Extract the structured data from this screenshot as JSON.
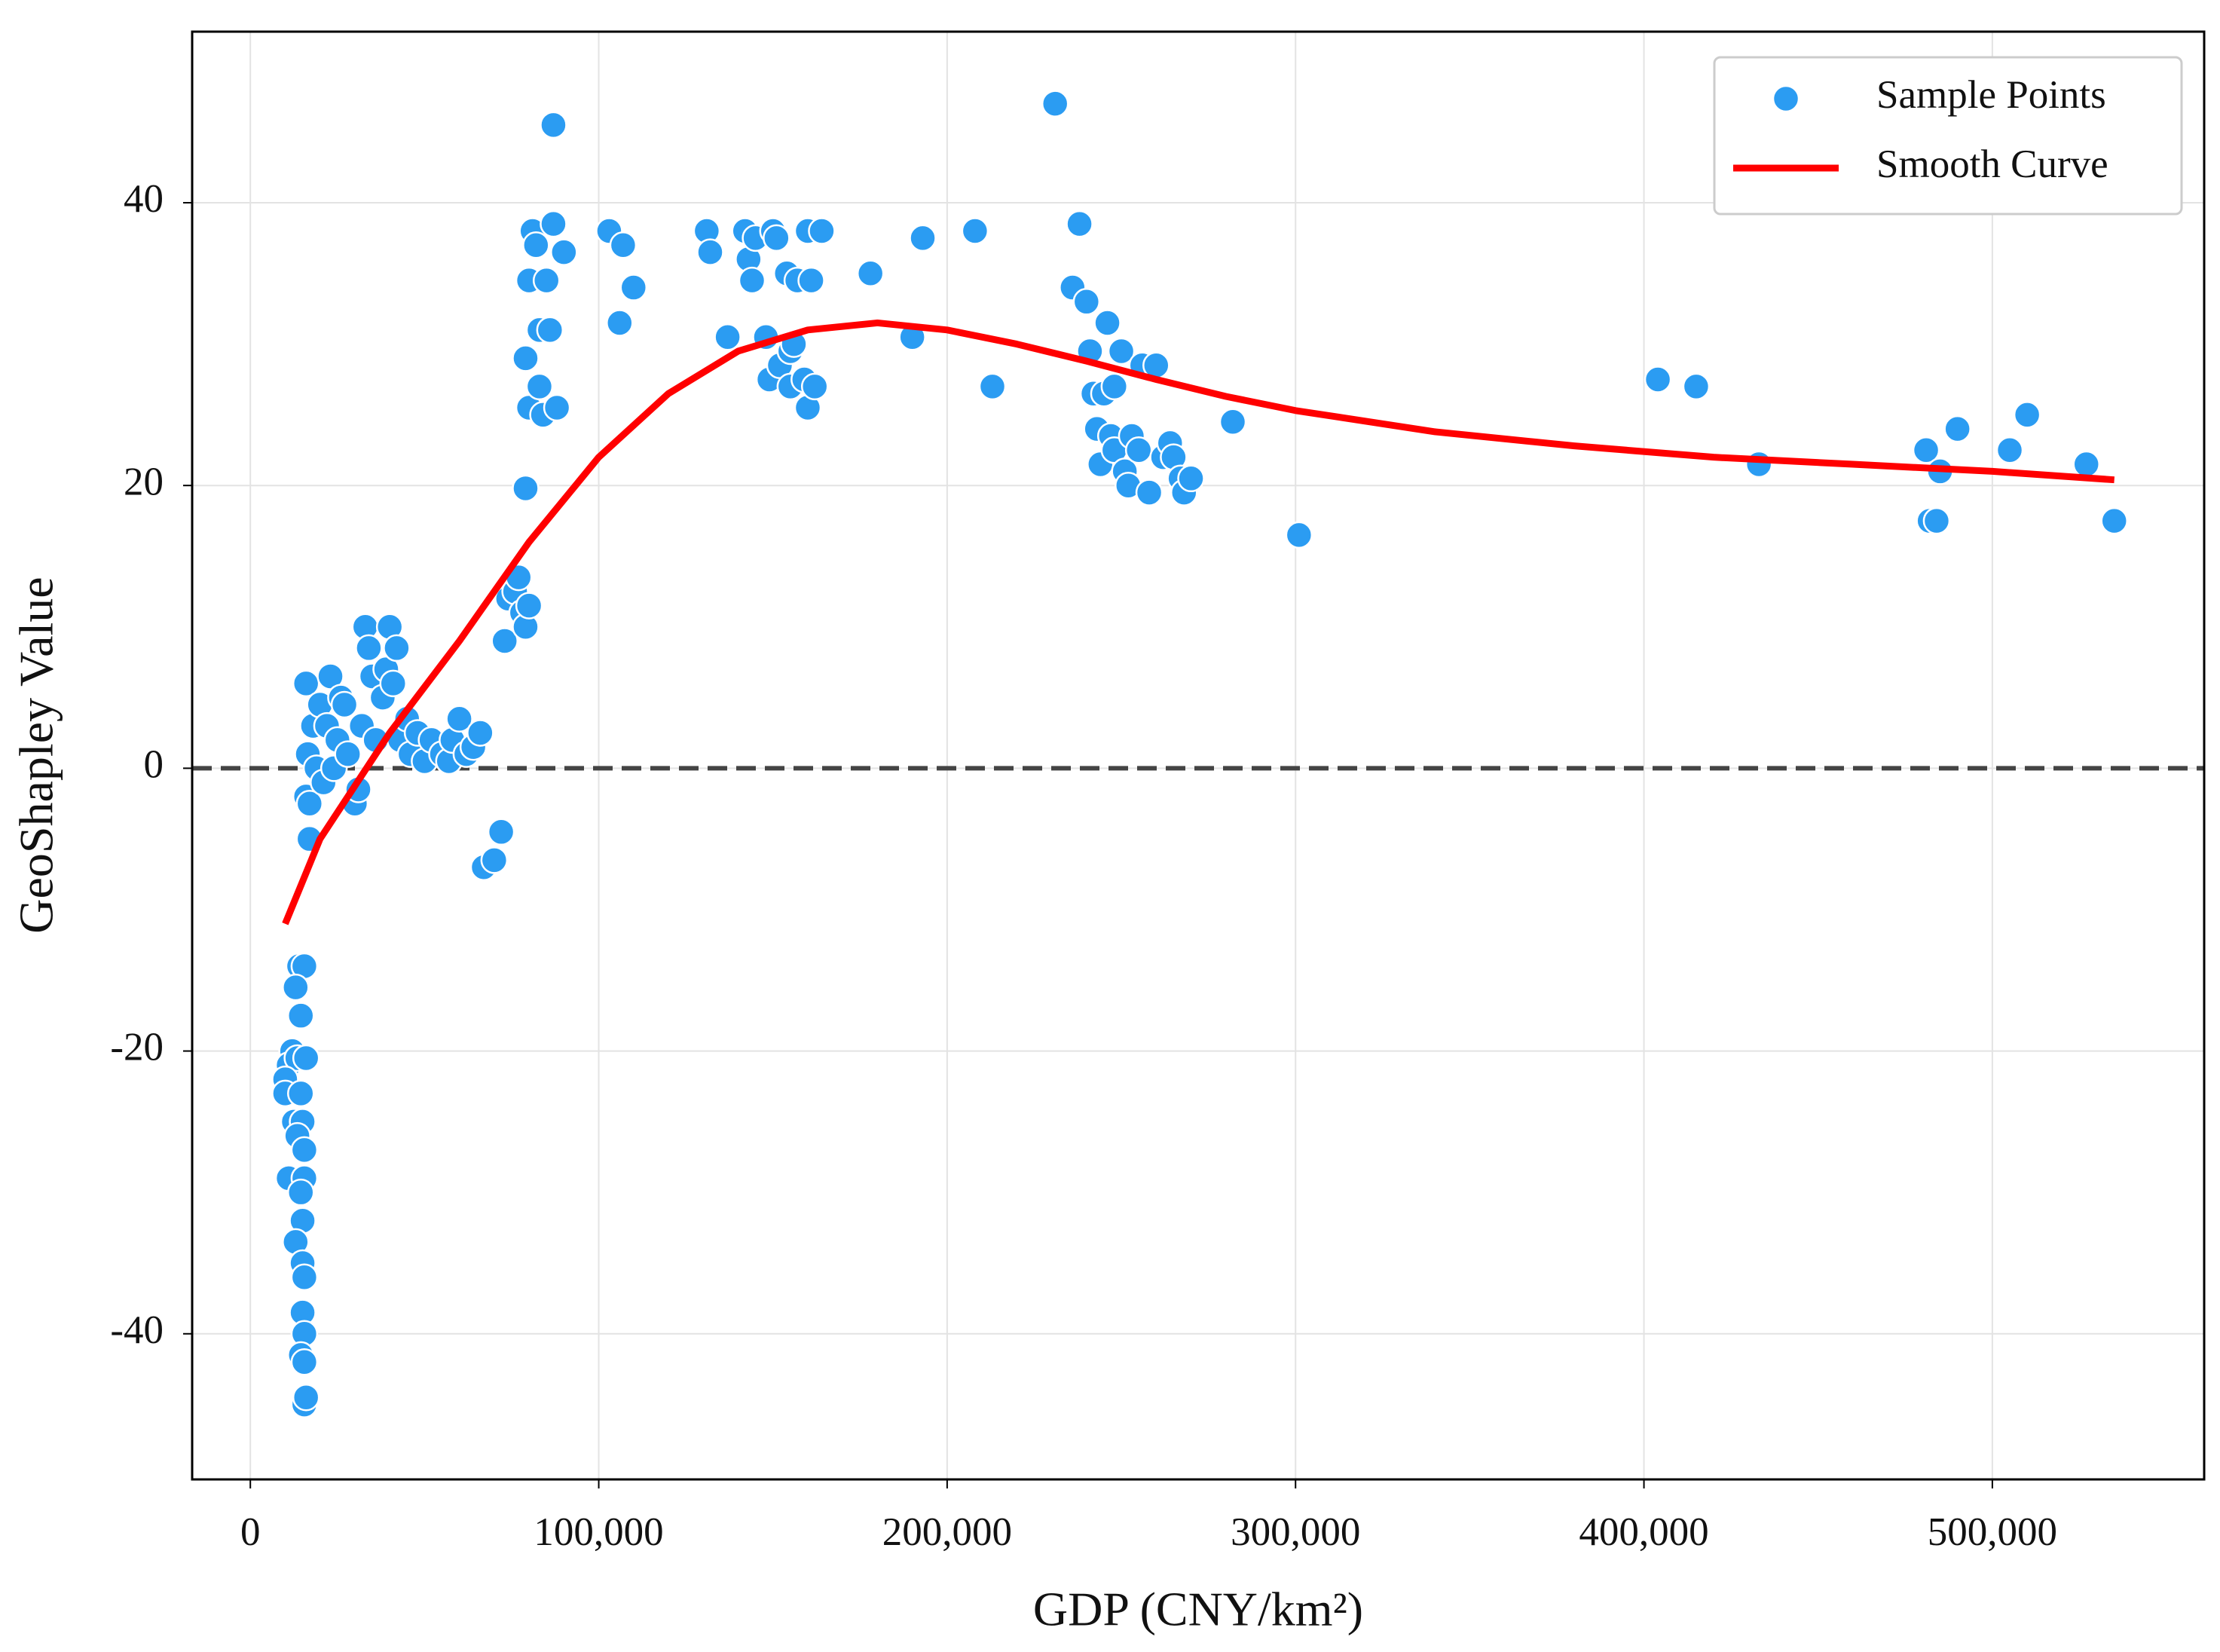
{
  "chart_data": {
    "type": "scatter",
    "xlabel": "GDP (CNY/km²)",
    "ylabel": "GeoShapley Value",
    "xlim": [
      -16700,
      560800
    ],
    "ylim": [
      -50.3,
      52.1
    ],
    "xticks": [
      0,
      {
        "value": 100000,
        "label": "100,000"
      },
      {
        "value": 200000,
        "label": "200,000"
      },
      {
        "value": 300000,
        "label": "300,000"
      },
      {
        "value": 400000,
        "label": "400,000"
      },
      {
        "value": 500000,
        "label": "500,000"
      }
    ],
    "yticks": [
      -40,
      -20,
      0,
      20,
      40
    ],
    "grid": true,
    "reference_line": 0,
    "legend": "upper right",
    "series": [
      {
        "name": "Sample Points",
        "type": "scatter",
        "color": "#2b9cf2",
        "x": [
          14000,
          15500,
          13000,
          14500,
          12000,
          11000,
          13500,
          16000,
          10000,
          10000,
          14500,
          12500,
          15000,
          13500,
          15500,
          11000,
          15500,
          14500,
          15000,
          13000,
          15000,
          15500,
          15000,
          15500,
          14500,
          15500,
          15500,
          16000,
          16000,
          16500,
          16000,
          17000,
          17000,
          18000,
          19000,
          20000,
          21000,
          22000,
          23000,
          24000,
          25000,
          26000,
          27000,
          28000,
          30000,
          31000,
          32000,
          33000,
          34000,
          35000,
          36000,
          38000,
          39000,
          40000,
          41000,
          42000,
          43000,
          45000,
          46000,
          48000,
          50000,
          52000,
          55000,
          57000,
          58000,
          60000,
          62000,
          64000,
          66000,
          67000,
          70000,
          72000,
          73000,
          74000,
          76000,
          77000,
          78000,
          79000,
          80000,
          79000,
          79000,
          80000,
          80000,
          81000,
          82000,
          83000,
          83000,
          84000,
          85000,
          86000,
          87000,
          87000,
          88000,
          90000,
          103000,
          106000,
          107000,
          110000,
          131000,
          132000,
          137000,
          142000,
          143000,
          144000,
          145000,
          148000,
          149000,
          150000,
          151000,
          152000,
          154000,
          155000,
          155000,
          156000,
          157000,
          159000,
          160000,
          160000,
          161000,
          162000,
          164000,
          178000,
          190000,
          193000,
          208000,
          213000,
          231000,
          236000,
          238000,
          240000,
          241000,
          242000,
          243000,
          244000,
          245000,
          246000,
          247000,
          248000,
          248000,
          250000,
          251000,
          252000,
          253000,
          255000,
          256000,
          258000,
          260000,
          262000,
          264000,
          265000,
          267000,
          268000,
          270000,
          282000,
          301000,
          404000,
          415000,
          433000,
          481000,
          482000,
          484000,
          485000,
          490000,
          505000,
          510000,
          527000,
          535000
        ],
        "values": [
          -14,
          -14,
          -15.5,
          -17.5,
          -20,
          -21,
          -20.5,
          -20.5,
          -22,
          -23,
          -23,
          -25,
          -25,
          -26,
          -27,
          -29,
          -29,
          -30,
          -32,
          -33.5,
          -35,
          -36,
          -38.5,
          -40,
          -41.5,
          -42,
          -45,
          -44.5,
          6,
          1,
          -2,
          -5,
          -2.5,
          3,
          0,
          4.5,
          -1,
          3,
          6.5,
          0,
          2,
          5,
          4.5,
          1,
          -2.5,
          -1.5,
          3,
          10,
          8.5,
          6.5,
          2,
          5,
          7,
          10,
          6,
          8.5,
          2,
          3.5,
          1,
          2.5,
          0.5,
          2,
          1,
          0.5,
          2,
          3.5,
          1,
          1.5,
          2.5,
          -7,
          -6.5,
          -4.5,
          9,
          12,
          12.5,
          13.5,
          11,
          10,
          11.5,
          29,
          19.8,
          25.5,
          34.5,
          38,
          37,
          31,
          27,
          25,
          34.5,
          31,
          38.5,
          45.5,
          25.5,
          36.5,
          38,
          31.5,
          37,
          34,
          38,
          36.5,
          30.5,
          38,
          36,
          34.5,
          37.5,
          30.5,
          27.5,
          38,
          37.5,
          28.5,
          35,
          27,
          29.5,
          30,
          34.5,
          27.5,
          38,
          25.5,
          34.5,
          27,
          38,
          35,
          30.5,
          37.5,
          38,
          27,
          47,
          34,
          38.5,
          33,
          29.5,
          26.5,
          24,
          21.5,
          26.5,
          31.5,
          23.5,
          27,
          22.5,
          29.5,
          21,
          20,
          23.5,
          22.5,
          28.5,
          19.5,
          28.5,
          22,
          23,
          22,
          20.5,
          19.5,
          20.5,
          24.5,
          16.5,
          27.5,
          27,
          21.5,
          22.5,
          17.5,
          17.5,
          21,
          24,
          22.5,
          25,
          21.5,
          17.5
        ]
      },
      {
        "name": "Smooth Curve",
        "type": "line",
        "color": "#ff0000",
        "x": [
          10000,
          20000,
          40000,
          60000,
          80000,
          100000,
          120000,
          140000,
          160000,
          180000,
          200000,
          220000,
          240000,
          260000,
          280000,
          300000,
          340000,
          380000,
          420000,
          460000,
          500000,
          535000
        ],
        "values": [
          -11,
          -5,
          2.5,
          9,
          16,
          22,
          26.5,
          29.5,
          31,
          31.5,
          31,
          30,
          28.8,
          27.5,
          26.3,
          25.3,
          23.8,
          22.8,
          22,
          21.5,
          21,
          20.4
        ]
      }
    ]
  }
}
